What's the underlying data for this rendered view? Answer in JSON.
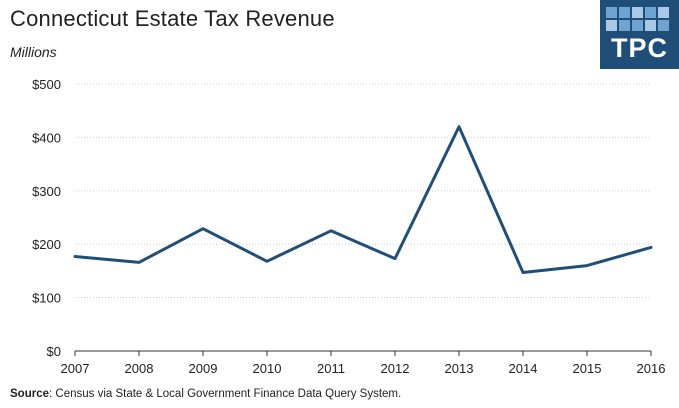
{
  "header": {
    "title": "Connecticut Estate Tax Revenue",
    "units": "Millions"
  },
  "logo": {
    "text": "TPC",
    "color": "#1f4e79"
  },
  "footer": {
    "source_label": "Source",
    "source_text": ": Census via State & Local Government Finance Data Query System."
  },
  "chart_data": {
    "type": "line",
    "title": "Connecticut Estate Tax Revenue",
    "ylabel": "Millions",
    "xlabel": "",
    "categories": [
      "2007",
      "2008",
      "2009",
      "2010",
      "2011",
      "2012",
      "2013",
      "2014",
      "2015",
      "2016"
    ],
    "series": [
      {
        "name": "Estate Tax Revenue",
        "color": "#1f4e79",
        "values": [
          177,
          166,
          229,
          168,
          225,
          173,
          420,
          147,
          160,
          194
        ]
      }
    ],
    "ylim": [
      0,
      500
    ],
    "yticks": [
      0,
      100,
      200,
      300,
      400,
      500
    ],
    "ytick_labels": [
      "$0",
      "$100",
      "$200",
      "$300",
      "$400",
      "$500"
    ],
    "grid": true
  }
}
